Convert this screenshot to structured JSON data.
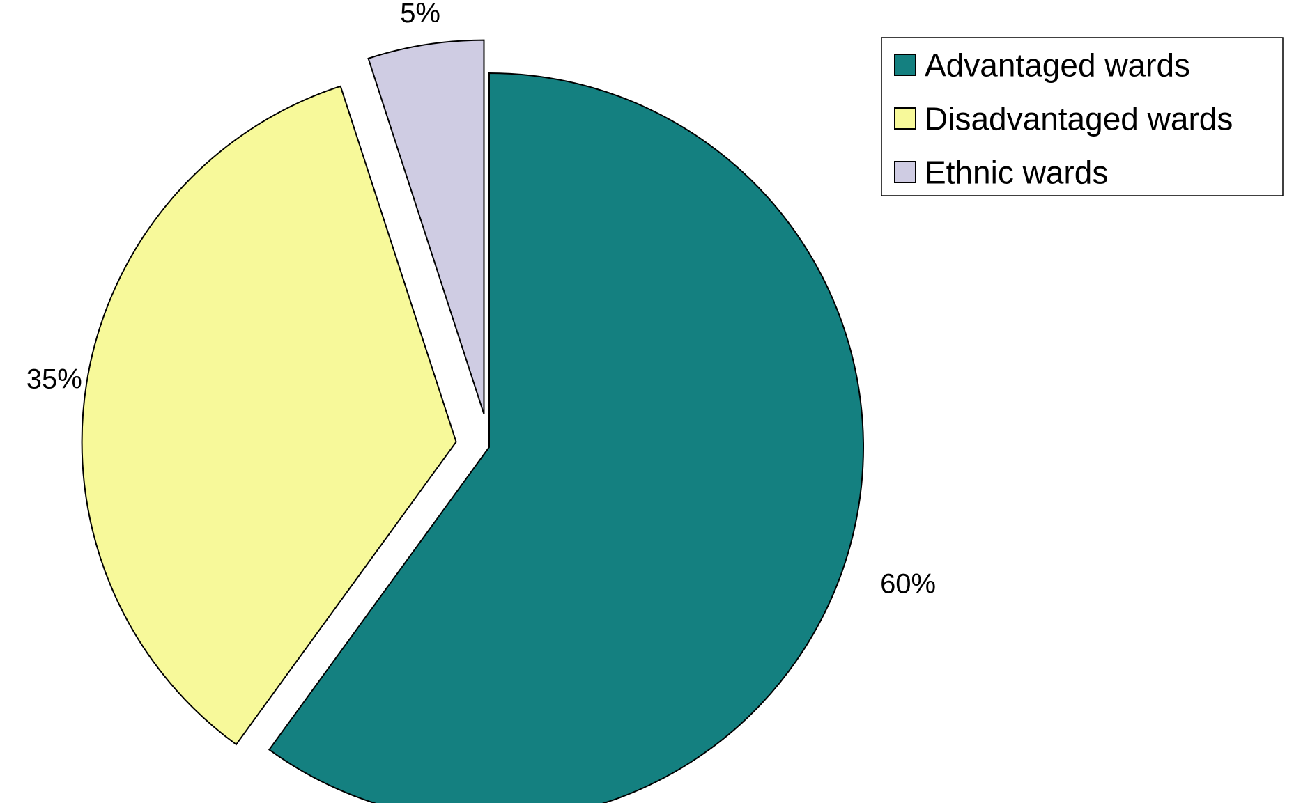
{
  "chart_data": {
    "type": "pie",
    "title": "",
    "start_angle": "12 o'clock",
    "direction": "clockwise",
    "exploded": true,
    "legend": {
      "position": "top-right",
      "border": true
    },
    "slices": [
      {
        "label": "Advantaged wards",
        "value": 60,
        "value_label": "60%",
        "color": "#148080"
      },
      {
        "label": "Disadvantaged wards",
        "value": 35,
        "value_label": "35%",
        "color": "#F7F99A"
      },
      {
        "label": "Ethnic wards",
        "value": 5,
        "value_label": "5%",
        "color": "#CFCCE3"
      }
    ]
  }
}
